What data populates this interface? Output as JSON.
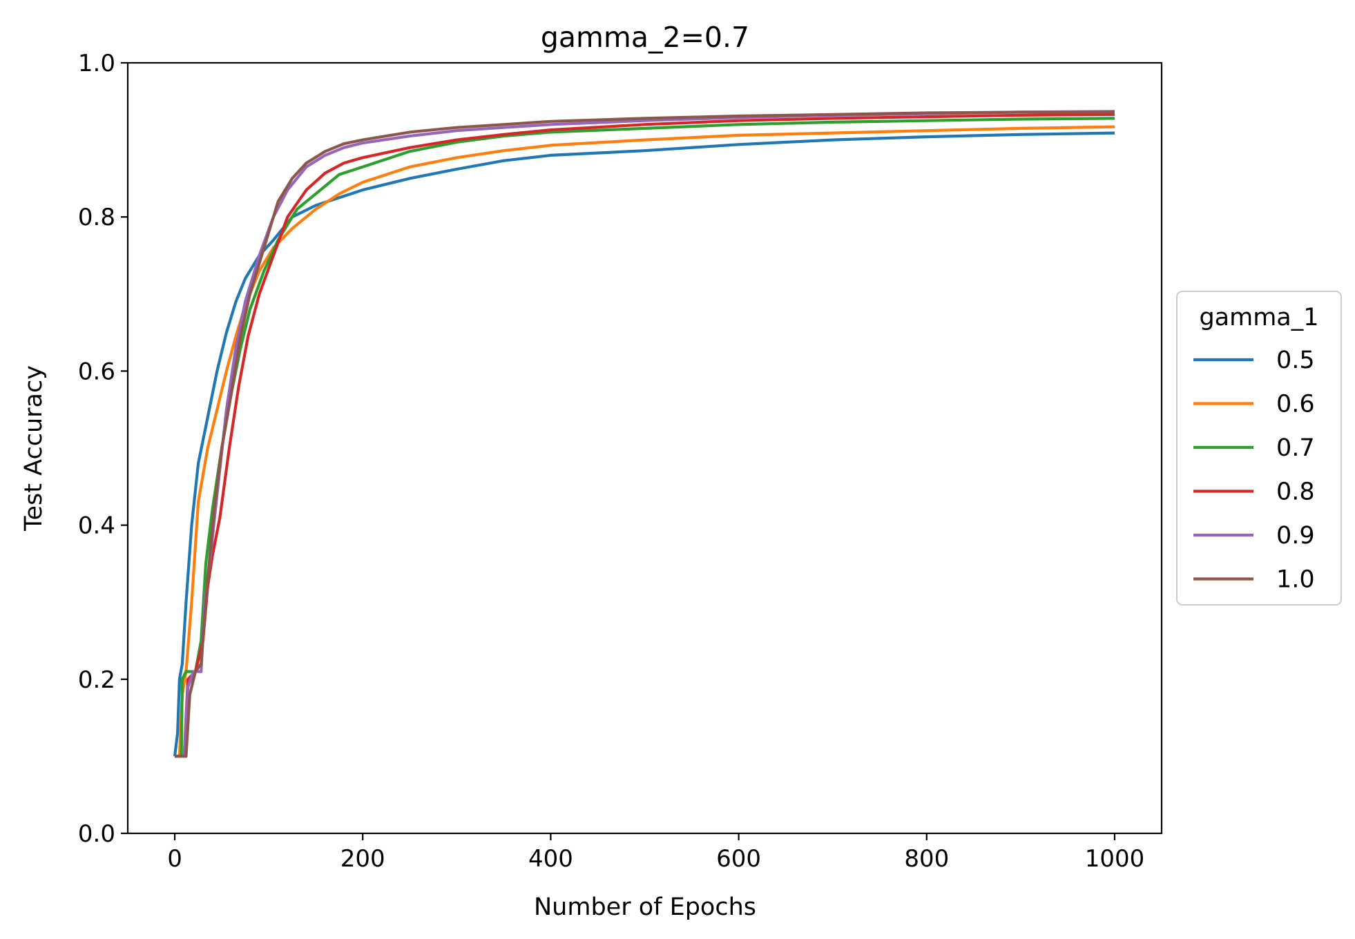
{
  "chart_data": {
    "type": "line",
    "title": "gamma_2=0.7",
    "xlabel": "Number of Epochs",
    "ylabel": "Test Accuracy",
    "xlim": [
      -50,
      1050
    ],
    "ylim": [
      0.0,
      1.0
    ],
    "xticks": [
      0,
      200,
      400,
      600,
      800,
      1000
    ],
    "yticks": [
      0.0,
      0.2,
      0.4,
      0.6,
      0.8,
      1.0
    ],
    "xtick_labels": [
      "0",
      "200",
      "400",
      "600",
      "800",
      "1000"
    ],
    "ytick_labels": [
      "0.0",
      "0.2",
      "0.4",
      "0.6",
      "0.8",
      "1.0"
    ],
    "grid": false,
    "legend": {
      "title": "gamma_1",
      "placement": "outside-right-center"
    },
    "series": [
      {
        "name": "0.5",
        "color": "#1f77b4",
        "points": [
          [
            0,
            0.1
          ],
          [
            3,
            0.13
          ],
          [
            5,
            0.2
          ],
          [
            8,
            0.22
          ],
          [
            12,
            0.3
          ],
          [
            18,
            0.4
          ],
          [
            25,
            0.48
          ],
          [
            35,
            0.54
          ],
          [
            45,
            0.6
          ],
          [
            55,
            0.65
          ],
          [
            65,
            0.69
          ],
          [
            75,
            0.72
          ],
          [
            90,
            0.75
          ],
          [
            105,
            0.77
          ],
          [
            125,
            0.8
          ],
          [
            150,
            0.815
          ],
          [
            175,
            0.825
          ],
          [
            200,
            0.835
          ],
          [
            250,
            0.85
          ],
          [
            300,
            0.862
          ],
          [
            350,
            0.873
          ],
          [
            400,
            0.88
          ],
          [
            500,
            0.886
          ],
          [
            600,
            0.894
          ],
          [
            700,
            0.9
          ],
          [
            800,
            0.904
          ],
          [
            900,
            0.907
          ],
          [
            1000,
            0.909
          ]
        ]
      },
      {
        "name": "0.6",
        "color": "#ff7f0e",
        "points": [
          [
            0,
            0.1
          ],
          [
            5,
            0.1
          ],
          [
            8,
            0.18
          ],
          [
            12,
            0.21
          ],
          [
            18,
            0.3
          ],
          [
            25,
            0.43
          ],
          [
            35,
            0.5
          ],
          [
            45,
            0.55
          ],
          [
            55,
            0.6
          ],
          [
            65,
            0.645
          ],
          [
            75,
            0.685
          ],
          [
            90,
            0.73
          ],
          [
            105,
            0.76
          ],
          [
            125,
            0.785
          ],
          [
            150,
            0.81
          ],
          [
            175,
            0.83
          ],
          [
            200,
            0.845
          ],
          [
            250,
            0.865
          ],
          [
            300,
            0.877
          ],
          [
            350,
            0.886
          ],
          [
            400,
            0.893
          ],
          [
            500,
            0.9
          ],
          [
            600,
            0.906
          ],
          [
            700,
            0.909
          ],
          [
            800,
            0.912
          ],
          [
            900,
            0.915
          ],
          [
            1000,
            0.917
          ]
        ]
      },
      {
        "name": "0.7",
        "color": "#2ca02c",
        "points": [
          [
            0,
            0.1
          ],
          [
            7,
            0.1
          ],
          [
            8,
            0.2
          ],
          [
            12,
            0.21
          ],
          [
            22,
            0.21
          ],
          [
            28,
            0.25
          ],
          [
            33,
            0.35
          ],
          [
            40,
            0.42
          ],
          [
            50,
            0.5
          ],
          [
            60,
            0.57
          ],
          [
            70,
            0.63
          ],
          [
            80,
            0.68
          ],
          [
            95,
            0.73
          ],
          [
            110,
            0.77
          ],
          [
            130,
            0.81
          ],
          [
            150,
            0.83
          ],
          [
            175,
            0.855
          ],
          [
            200,
            0.865
          ],
          [
            250,
            0.885
          ],
          [
            300,
            0.897
          ],
          [
            350,
            0.905
          ],
          [
            400,
            0.91
          ],
          [
            500,
            0.915
          ],
          [
            600,
            0.92
          ],
          [
            700,
            0.923
          ],
          [
            800,
            0.925
          ],
          [
            900,
            0.927
          ],
          [
            1000,
            0.928
          ]
        ]
      },
      {
        "name": "0.8",
        "color": "#d62728",
        "points": [
          [
            0,
            0.1
          ],
          [
            10,
            0.1
          ],
          [
            14,
            0.2
          ],
          [
            22,
            0.21
          ],
          [
            30,
            0.25
          ],
          [
            35,
            0.32
          ],
          [
            40,
            0.36
          ],
          [
            48,
            0.41
          ],
          [
            58,
            0.5
          ],
          [
            68,
            0.58
          ],
          [
            78,
            0.645
          ],
          [
            90,
            0.7
          ],
          [
            105,
            0.75
          ],
          [
            120,
            0.8
          ],
          [
            140,
            0.835
          ],
          [
            160,
            0.857
          ],
          [
            180,
            0.87
          ],
          [
            200,
            0.877
          ],
          [
            250,
            0.89
          ],
          [
            300,
            0.9
          ],
          [
            350,
            0.907
          ],
          [
            400,
            0.913
          ],
          [
            500,
            0.92
          ],
          [
            600,
            0.925
          ],
          [
            700,
            0.928
          ],
          [
            800,
            0.93
          ],
          [
            900,
            0.932
          ],
          [
            1000,
            0.933
          ]
        ]
      },
      {
        "name": "0.9",
        "color": "#9467bd",
        "points": [
          [
            0,
            0.1
          ],
          [
            10,
            0.1
          ],
          [
            14,
            0.19
          ],
          [
            20,
            0.21
          ],
          [
            28,
            0.21
          ],
          [
            32,
            0.3
          ],
          [
            38,
            0.36
          ],
          [
            45,
            0.44
          ],
          [
            55,
            0.55
          ],
          [
            65,
            0.63
          ],
          [
            75,
            0.69
          ],
          [
            90,
            0.75
          ],
          [
            105,
            0.8
          ],
          [
            120,
            0.835
          ],
          [
            140,
            0.865
          ],
          [
            160,
            0.88
          ],
          [
            180,
            0.89
          ],
          [
            200,
            0.896
          ],
          [
            250,
            0.905
          ],
          [
            300,
            0.912
          ],
          [
            350,
            0.916
          ],
          [
            400,
            0.92
          ],
          [
            500,
            0.925
          ],
          [
            600,
            0.929
          ],
          [
            700,
            0.932
          ],
          [
            800,
            0.934
          ],
          [
            900,
            0.936
          ],
          [
            1000,
            0.937
          ]
        ]
      },
      {
        "name": "1.0",
        "color": "#8c564b",
        "points": [
          [
            0,
            0.1
          ],
          [
            12,
            0.1
          ],
          [
            16,
            0.18
          ],
          [
            22,
            0.21
          ],
          [
            28,
            0.22
          ],
          [
            35,
            0.33
          ],
          [
            42,
            0.42
          ],
          [
            50,
            0.5
          ],
          [
            60,
            0.57
          ],
          [
            70,
            0.645
          ],
          [
            80,
            0.7
          ],
          [
            95,
            0.76
          ],
          [
            110,
            0.82
          ],
          [
            125,
            0.85
          ],
          [
            140,
            0.87
          ],
          [
            160,
            0.885
          ],
          [
            180,
            0.895
          ],
          [
            200,
            0.9
          ],
          [
            250,
            0.91
          ],
          [
            300,
            0.916
          ],
          [
            350,
            0.92
          ],
          [
            400,
            0.924
          ],
          [
            500,
            0.928
          ],
          [
            600,
            0.931
          ],
          [
            700,
            0.933
          ],
          [
            800,
            0.935
          ],
          [
            900,
            0.936
          ],
          [
            1000,
            0.936
          ]
        ]
      }
    ]
  }
}
